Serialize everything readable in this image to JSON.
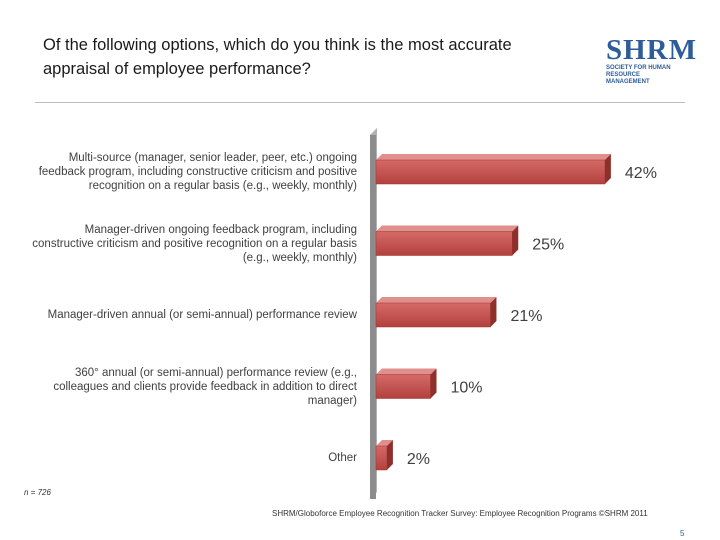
{
  "title": "Of the following options, which do you think is the most accurate appraisal of employee performance?",
  "logo": {
    "name": "SHRM",
    "subtitle": "SOCIETY FOR HUMAN RESOURCE MANAGEMENT"
  },
  "chart_data": {
    "type": "bar",
    "orientation": "horizontal",
    "categories": [
      "Multi-source (manager, senior leader, peer, etc.) ongoing feedback program, including constructive criticism and positive recognition on a regular basis (e.g., weekly, monthly)",
      "Manager-driven ongoing feedback program, including constructive criticism and positive recognition on a regular basis (e.g., weekly, monthly)",
      "Manager-driven annual (or semi-annual) performance review",
      "360° annual (or semi-annual) performance review (e.g., colleagues and clients provide feedback in addition to direct manager)",
      "Other"
    ],
    "values": [
      42,
      25,
      21,
      10,
      2
    ],
    "value_labels": [
      "42%",
      "25%",
      "21%",
      "10%",
      "2%"
    ],
    "color": "#c0504d"
  },
  "note": "n = 726",
  "source": "SHRM/Globoforce Employee Recognition Tracker Survey: Employee Recognition Programs ©SHRM 2011",
  "page_number": "5"
}
